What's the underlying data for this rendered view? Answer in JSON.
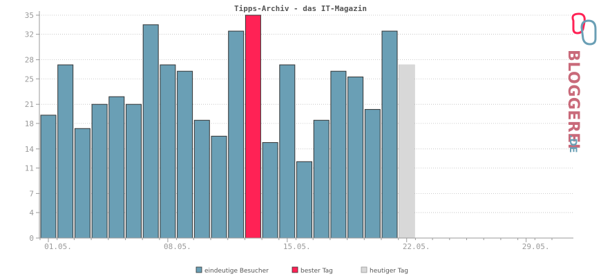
{
  "chart_data": {
    "type": "bar",
    "title": "Tipps-Archiv - das IT-Magazin",
    "ylim": [
      0,
      35
    ],
    "yticks": [
      0,
      4,
      7,
      11,
      14,
      18,
      21,
      25,
      28,
      32,
      35
    ],
    "x_tick_labels": [
      "01.05.",
      "08.05.",
      "15.05.",
      "22.05.",
      "29.05."
    ],
    "x_tick_days": [
      1,
      8,
      15,
      22,
      29
    ],
    "days_in_axis": 31,
    "grid": true,
    "legend_position": "bottom",
    "colors": {
      "visitors": "#6a9fb5",
      "best": "#ff2255",
      "today": "#d8d8d8"
    },
    "series": [
      {
        "name": "eindeutige Besucher",
        "days": [
          1,
          2,
          3,
          4,
          5,
          6,
          7,
          8,
          9,
          10,
          11,
          12,
          14,
          15,
          16,
          17,
          18,
          19,
          20,
          21,
          22
        ],
        "values": [
          19.3,
          27.2,
          17.2,
          21,
          22.2,
          21,
          33.5,
          27.2,
          26.2,
          18.5,
          16,
          32.5,
          15,
          27.2,
          12,
          18.5,
          26.2,
          25.3,
          20.2,
          32.5,
          27.2
        ]
      },
      {
        "name": "bester Tag",
        "days": [
          13
        ],
        "values": [
          35
        ]
      },
      {
        "name": "heutiger Tag",
        "days": [
          22
        ],
        "values": [
          27.2
        ]
      }
    ]
  },
  "legend": {
    "visitors": "eindeutige Besucher",
    "best": "bester Tag",
    "today": "heutiger Tag"
  },
  "logo": {
    "text": "BLOGGEREI",
    "suffix": ".DE"
  }
}
